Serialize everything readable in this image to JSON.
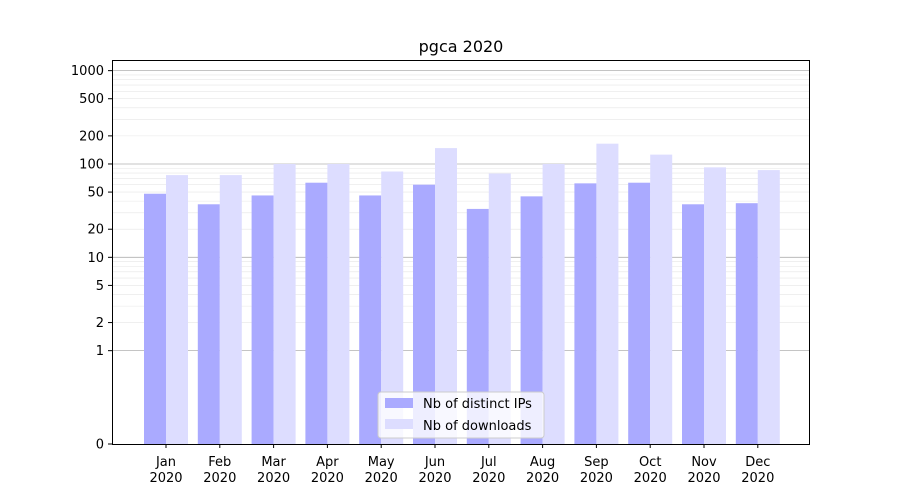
{
  "chart_data": {
    "type": "bar",
    "title": "pgca 2020",
    "xlabel": "",
    "ylabel": "",
    "yscale": "symlog",
    "ylim": [
      0,
      1300
    ],
    "yticks": [
      0,
      1,
      2,
      5,
      10,
      20,
      50,
      100,
      200,
      500,
      1000
    ],
    "ytick_labels": [
      "0",
      "1",
      "2",
      "5",
      "10",
      "20",
      "50",
      "100",
      "200",
      "500",
      "1000"
    ],
    "categories": [
      "Jan 2020",
      "Feb 2020",
      "Mar 2020",
      "Apr 2020",
      "May 2020",
      "Jun 2020",
      "Jul 2020",
      "Aug 2020",
      "Sep 2020",
      "Oct 2020",
      "Nov 2020",
      "Dec 2020"
    ],
    "category_lines": [
      [
        "Jan",
        "2020"
      ],
      [
        "Feb",
        "2020"
      ],
      [
        "Mar",
        "2020"
      ],
      [
        "Apr",
        "2020"
      ],
      [
        "May",
        "2020"
      ],
      [
        "Jun",
        "2020"
      ],
      [
        "Jul",
        "2020"
      ],
      [
        "Aug",
        "2020"
      ],
      [
        "Sep",
        "2020"
      ],
      [
        "Oct",
        "2020"
      ],
      [
        "Nov",
        "2020"
      ],
      [
        "Dec",
        "2020"
      ]
    ],
    "series": [
      {
        "name": "Nb of distinct IPs",
        "color": "#aaaaff",
        "values": [
          48,
          37,
          46,
          63,
          46,
          60,
          33,
          45,
          62,
          63,
          37,
          38
        ]
      },
      {
        "name": "Nb of downloads",
        "color": "#ddddff",
        "values": [
          76,
          76,
          100,
          100,
          83,
          148,
          79,
          100,
          165,
          126,
          92,
          86
        ]
      }
    ],
    "legend_position": "lower-center",
    "grid": true
  }
}
